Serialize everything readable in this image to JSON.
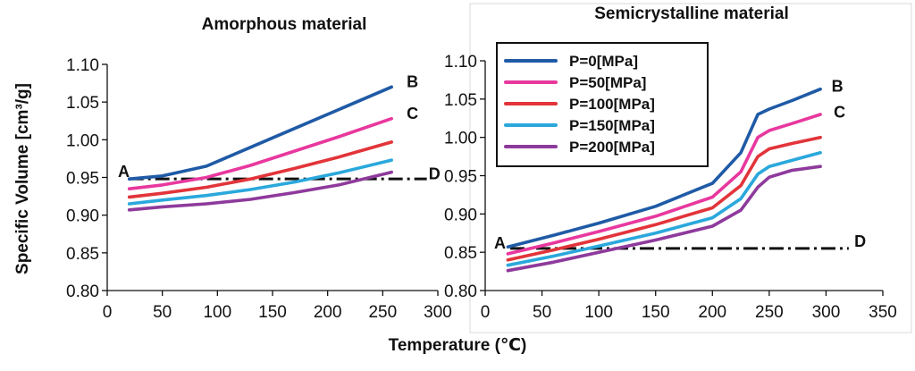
{
  "chart_data": {
    "type": "line",
    "ylabel": "Specific Volume [cm³/g]",
    "xlabel": "Temperature (℃)",
    "legend": {
      "placement": "top-left of right panel",
      "entries": [
        "P=0[MPa]",
        "P=50[MPa]",
        "P=100[MPa]",
        "P=150[MPa]",
        "P=200[MPa]"
      ],
      "colors": [
        "#1f5aa6",
        "#e8389e",
        "#e2343a",
        "#2aa8dc",
        "#8e3a9c"
      ]
    },
    "panels": [
      {
        "title": "Amorphous material",
        "xlim": [
          0,
          300
        ],
        "ylim": [
          0.8,
          1.1
        ],
        "xticks": [
          "0",
          "50",
          "100",
          "150",
          "200",
          "250",
          "300"
        ],
        "yticks": [
          "0.80",
          "0.85",
          "0.90",
          "0.95",
          "1.00",
          "1.05",
          "1.10"
        ],
        "series": [
          {
            "name": "P=0[MPa]",
            "color": "#1f5aa6",
            "x": [
              20,
              50,
              90,
              130,
              170,
              210,
              258
            ],
            "y": [
              0.948,
              0.952,
              0.965,
              0.99,
              1.015,
              1.04,
              1.07
            ]
          },
          {
            "name": "P=50[MPa]",
            "color": "#e8389e",
            "x": [
              20,
              50,
              90,
              130,
              170,
              210,
              258
            ],
            "y": [
              0.935,
              0.94,
              0.95,
              0.966,
              0.985,
              1.004,
              1.028
            ]
          },
          {
            "name": "P=100[MPa]",
            "color": "#e2343a",
            "x": [
              20,
              50,
              90,
              130,
              170,
              210,
              258
            ],
            "y": [
              0.924,
              0.929,
              0.937,
              0.948,
              0.962,
              0.977,
              0.997
            ]
          },
          {
            "name": "P=150[MPa]",
            "color": "#2aa8dc",
            "x": [
              20,
              50,
              90,
              130,
              170,
              210,
              258
            ],
            "y": [
              0.915,
              0.92,
              0.926,
              0.934,
              0.944,
              0.956,
              0.973
            ]
          },
          {
            "name": "P=200[MPa]",
            "color": "#8e3a9c",
            "x": [
              20,
              50,
              90,
              130,
              170,
              210,
              258
            ],
            "y": [
              0.907,
              0.911,
              0.915,
              0.921,
              0.93,
              0.94,
              0.957
            ]
          }
        ],
        "reference_line": {
          "style": "dash-dot",
          "x": [
            20,
            290
          ],
          "y": [
            0.948,
            0.948
          ]
        },
        "labels": [
          {
            "text": "A",
            "x": 15,
            "y": 0.958
          },
          {
            "text": "B",
            "x": 277,
            "y": 1.077
          },
          {
            "text": "C",
            "x": 277,
            "y": 1.035
          },
          {
            "text": "D",
            "x": 297,
            "y": 0.955
          }
        ]
      },
      {
        "title": "Semicrystalline material",
        "xlim": [
          0,
          350
        ],
        "ylim": [
          0.8,
          1.1
        ],
        "xticks": [
          "0",
          "50",
          "100",
          "150",
          "200",
          "250",
          "300",
          "350"
        ],
        "yticks": [
          "0.80",
          "0.85",
          "0.90",
          "0.95",
          "1.00",
          "1.05",
          "1.10"
        ],
        "series": [
          {
            "name": "P=0[MPa]",
            "color": "#1f5aa6",
            "x": [
              20,
              60,
              100,
              150,
              200,
              225,
              240,
              250,
              270,
              295
            ],
            "y": [
              0.857,
              0.872,
              0.888,
              0.91,
              0.94,
              0.98,
              1.03,
              1.037,
              1.048,
              1.063
            ]
          },
          {
            "name": "P=50[MPa]",
            "color": "#e8389e",
            "x": [
              20,
              60,
              100,
              150,
              200,
              225,
              240,
              250,
              270,
              295
            ],
            "y": [
              0.848,
              0.862,
              0.877,
              0.897,
              0.922,
              0.955,
              1.0,
              1.009,
              1.018,
              1.03
            ]
          },
          {
            "name": "P=100[MPa]",
            "color": "#e2343a",
            "x": [
              20,
              60,
              100,
              150,
              200,
              225,
              240,
              250,
              270,
              295
            ],
            "y": [
              0.84,
              0.853,
              0.867,
              0.886,
              0.908,
              0.937,
              0.975,
              0.985,
              0.992,
              1.0
            ]
          },
          {
            "name": "P=150[MPa]",
            "color": "#2aa8dc",
            "x": [
              20,
              60,
              100,
              150,
              200,
              225,
              240,
              250,
              270,
              295
            ],
            "y": [
              0.833,
              0.845,
              0.858,
              0.875,
              0.895,
              0.92,
              0.952,
              0.962,
              0.97,
              0.98
            ]
          },
          {
            "name": "P=200[MPa]",
            "color": "#8e3a9c",
            "x": [
              20,
              60,
              100,
              150,
              200,
              225,
              240,
              250,
              270,
              295
            ],
            "y": [
              0.826,
              0.837,
              0.85,
              0.866,
              0.884,
              0.905,
              0.935,
              0.948,
              0.957,
              0.962
            ]
          }
        ],
        "reference_line": {
          "style": "dash-dot",
          "x": [
            22,
            320
          ],
          "y": [
            0.855,
            0.855
          ]
        },
        "labels": [
          {
            "text": "A",
            "x": 13,
            "y": 0.862
          },
          {
            "text": "B",
            "x": 310,
            "y": 1.067
          },
          {
            "text": "C",
            "x": 312,
            "y": 1.033
          },
          {
            "text": "D",
            "x": 330,
            "y": 0.864
          }
        ]
      }
    ]
  }
}
